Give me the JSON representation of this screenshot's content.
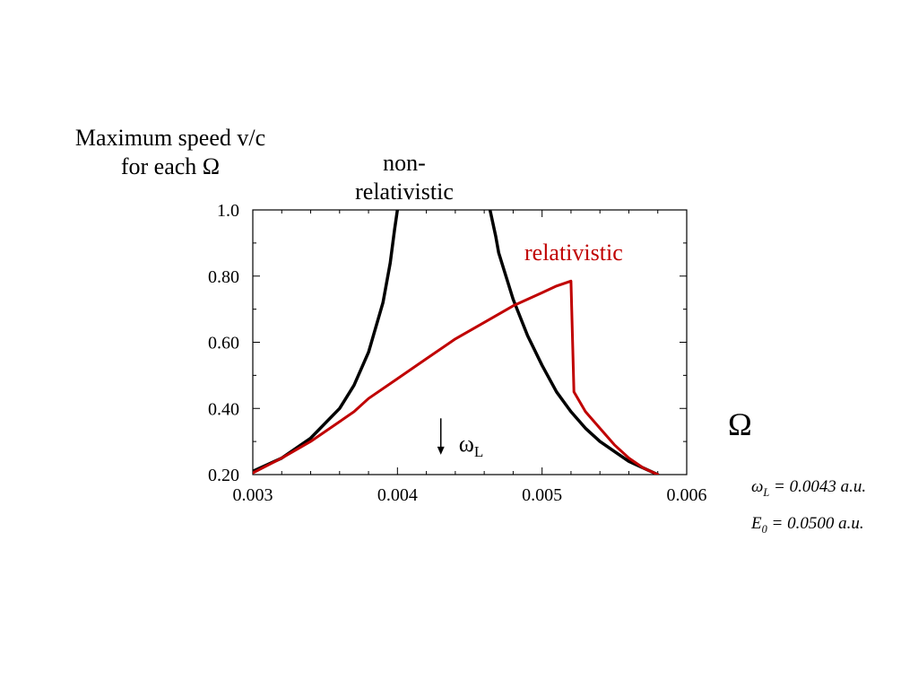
{
  "chart_data": {
    "type": "line",
    "ylabel_line1": "Maximum speed v/c",
    "ylabel_line2": "for each Ω",
    "xlabel": "Ω",
    "xlim": [
      0.003,
      0.006
    ],
    "ylim": [
      0.2,
      1.0
    ],
    "xticks": [
      "0.003",
      "0.004",
      "0.005",
      "0.006"
    ],
    "yticks": [
      "0.20",
      "0.40",
      "0.60",
      "0.80",
      "1.0"
    ],
    "grid": false,
    "series": [
      {
        "name": "non-relativistic",
        "name_line1": "non-",
        "name_line2": "relativistic",
        "color": "#000000",
        "segments": [
          [
            [
              0.003,
              0.21
            ],
            [
              0.0032,
              0.25
            ],
            [
              0.0034,
              0.31
            ],
            [
              0.0036,
              0.4
            ],
            [
              0.0037,
              0.47
            ],
            [
              0.0038,
              0.57
            ],
            [
              0.0039,
              0.72
            ],
            [
              0.00395,
              0.84
            ],
            [
              0.00398,
              0.94
            ],
            [
              0.004,
              1.0
            ]
          ],
          [
            [
              0.00464,
              1.0
            ],
            [
              0.00468,
              0.92
            ],
            [
              0.0047,
              0.87
            ],
            [
              0.0048,
              0.73
            ],
            [
              0.0049,
              0.62
            ],
            [
              0.005,
              0.53
            ],
            [
              0.0051,
              0.45
            ],
            [
              0.0052,
              0.39
            ],
            [
              0.0053,
              0.34
            ],
            [
              0.0054,
              0.3
            ],
            [
              0.0055,
              0.27
            ],
            [
              0.0056,
              0.24
            ],
            [
              0.0057,
              0.22
            ],
            [
              0.0058,
              0.2
            ]
          ]
        ]
      },
      {
        "name": "relativistic",
        "color": "#c00000",
        "segments": [
          [
            [
              0.003,
              0.205
            ],
            [
              0.0032,
              0.25
            ],
            [
              0.0034,
              0.3
            ],
            [
              0.0036,
              0.36
            ],
            [
              0.0037,
              0.39
            ],
            [
              0.0038,
              0.43
            ],
            [
              0.004,
              0.49
            ],
            [
              0.0042,
              0.55
            ],
            [
              0.0044,
              0.61
            ],
            [
              0.0046,
              0.66
            ],
            [
              0.0048,
              0.71
            ],
            [
              0.005,
              0.75
            ],
            [
              0.0051,
              0.77
            ],
            [
              0.0052,
              0.785
            ],
            [
              0.00522,
              0.45
            ],
            [
              0.0053,
              0.39
            ],
            [
              0.0054,
              0.34
            ],
            [
              0.0055,
              0.29
            ],
            [
              0.0056,
              0.25
            ],
            [
              0.0057,
              0.22
            ],
            [
              0.0058,
              0.2
            ]
          ]
        ]
      }
    ],
    "annotations": {
      "omega_marker_symbol": "ω",
      "omega_marker_sub": "L",
      "omega_marker_x": 0.0043,
      "omega_marker_y_top": 0.37,
      "omega_marker_y_bottom": 0.26
    }
  },
  "formulas": {
    "line1_var": "ω",
    "line1_sub": "L",
    "line1_rest": " = 0.0043 a.u.",
    "line2_var": "E",
    "line2_sub": "0",
    "line2_rest": " = 0.0500 a.u."
  }
}
